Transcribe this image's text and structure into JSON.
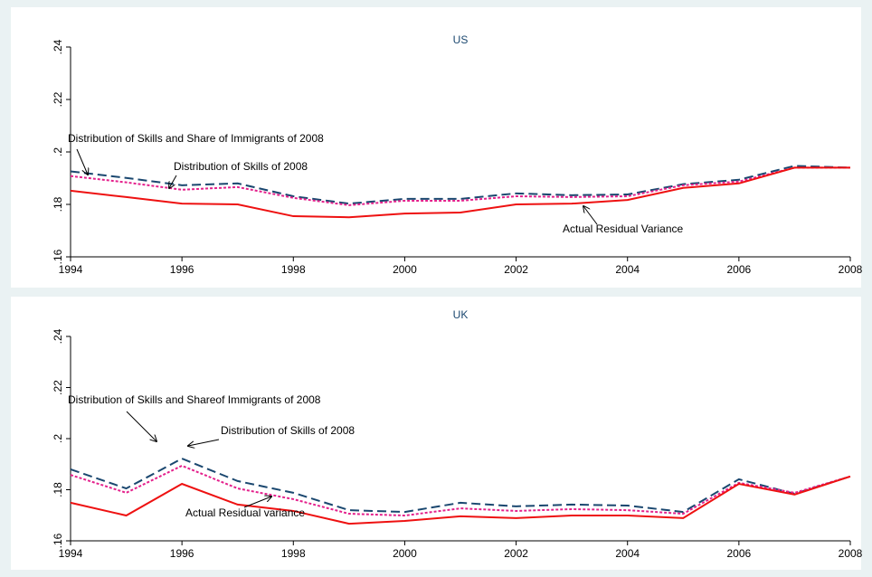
{
  "chart_data": [
    {
      "type": "line",
      "title": "US",
      "x": [
        1994,
        1995,
        1996,
        1997,
        1998,
        1999,
        2000,
        2001,
        2002,
        2003,
        2004,
        2005,
        2006,
        2007,
        2008
      ],
      "xlim": [
        1994,
        2008
      ],
      "xticks": [
        1994,
        1996,
        1998,
        2000,
        2002,
        2004,
        2006,
        2008
      ],
      "ylim": [
        0.16,
        0.24
      ],
      "yticks": [
        {
          "value": 0.16,
          "label": ".16"
        },
        {
          "value": 0.18,
          "label": ".18"
        },
        {
          "value": 0.2,
          "label": ".2"
        },
        {
          "value": 0.22,
          "label": ".22"
        },
        {
          "value": 0.24,
          "label": ".24"
        }
      ],
      "series": [
        {
          "name": "Distribution of Skills and Share of Immigrants of 2008",
          "color": "#1a476f",
          "dash": "10,5",
          "values": [
            0.1926,
            0.1901,
            0.1873,
            0.188,
            0.1831,
            0.1803,
            0.1821,
            0.1821,
            0.1842,
            0.1835,
            0.1838,
            0.1877,
            0.1894,
            0.1947,
            0.194
          ]
        },
        {
          "name": "Distribution of Skills of 2008",
          "color": "#e4218c",
          "dash": "3,2",
          "values": [
            0.1908,
            0.1884,
            0.1856,
            0.1866,
            0.1825,
            0.1797,
            0.1814,
            0.1814,
            0.1831,
            0.1828,
            0.1831,
            0.1873,
            0.1887,
            0.194,
            0.194
          ]
        },
        {
          "name": "Actual Residual Variance",
          "color": "#ee1111",
          "dash": "",
          "values": [
            0.1852,
            0.1828,
            0.1803,
            0.18,
            0.1755,
            0.1751,
            0.1765,
            0.1769,
            0.18,
            0.1803,
            0.1817,
            0.1863,
            0.188,
            0.194,
            0.194
          ]
        }
      ]
    },
    {
      "type": "line",
      "title": "UK",
      "x": [
        1994,
        1995,
        1996,
        1997,
        1998,
        1999,
        2000,
        2001,
        2002,
        2003,
        2004,
        2005,
        2006,
        2007,
        2008
      ],
      "xlim": [
        1994,
        2008
      ],
      "xticks": [
        1994,
        1996,
        1998,
        2000,
        2002,
        2004,
        2006,
        2008
      ],
      "ylim": [
        0.16,
        0.24
      ],
      "yticks": [
        {
          "value": 0.16,
          "label": ".16"
        },
        {
          "value": 0.18,
          "label": ".18"
        },
        {
          "value": 0.2,
          "label": ".2"
        },
        {
          "value": 0.22,
          "label": ".22"
        },
        {
          "value": 0.24,
          "label": ".24"
        }
      ],
      "series": [
        {
          "name": "Distribution of Skills and Shareof Immigrants of 2008",
          "color": "#1a476f",
          "dash": "10,5",
          "values": [
            0.188,
            0.1805,
            0.1922,
            0.1834,
            0.1788,
            0.172,
            0.1713,
            0.1749,
            0.1735,
            0.1742,
            0.1738,
            0.1713,
            0.1841,
            0.1784,
            0.1852
          ]
        },
        {
          "name": "Distribution of Skills of 2008",
          "color": "#e4218c",
          "dash": "3,2",
          "values": [
            0.1858,
            0.1788,
            0.1894,
            0.1805,
            0.1763,
            0.1706,
            0.1699,
            0.1727,
            0.1717,
            0.1724,
            0.172,
            0.1706,
            0.1827,
            0.1788,
            0.1852
          ]
        },
        {
          "name": "Actual Residual variance",
          "color": "#ee1111",
          "dash": "",
          "values": [
            0.1749,
            0.1699,
            0.1823,
            0.1742,
            0.1717,
            0.1667,
            0.1678,
            0.1696,
            0.1689,
            0.1699,
            0.1699,
            0.1689,
            0.1823,
            0.1781,
            0.1852
          ]
        }
      ]
    }
  ]
}
